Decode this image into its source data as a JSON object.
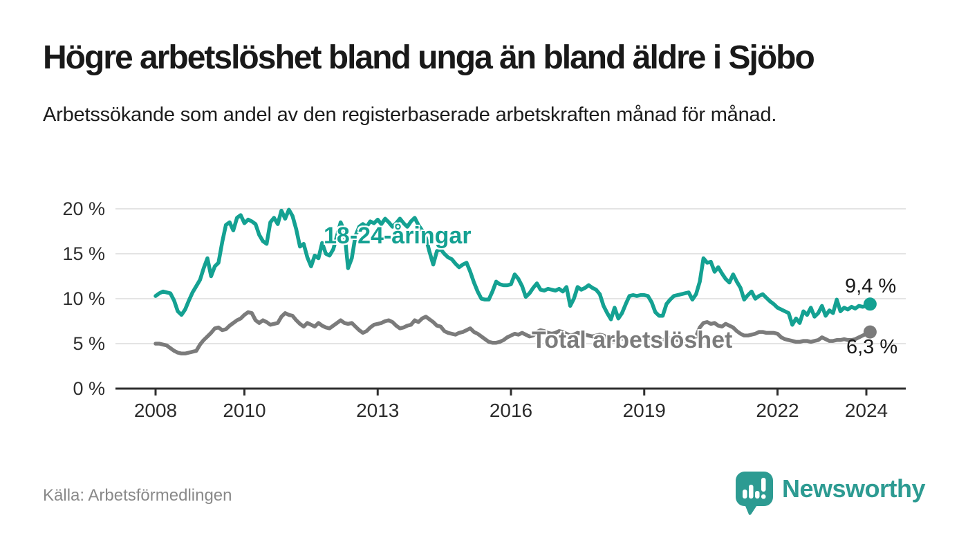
{
  "header": {
    "title": "Högre arbetslöshet bland unga än bland äldre i Sjöbo",
    "subtitle": "Arbetssökande som andel av den registerbaserade arbetskraften månad för månad."
  },
  "footer": {
    "source": "Källa: Arbetsförmedlingen",
    "brand": "Newsworthy"
  },
  "colors": {
    "youth_line": "#14a192",
    "total_line": "#7b7b7b",
    "grid": "#dcdcdc",
    "axis": "#2e2e2e",
    "logo_teal": "#2d9b92"
  },
  "chart_data": {
    "type": "line",
    "title": "Högre arbetslöshet bland unga än bland äldre i Sjöbo",
    "xlabel": "",
    "ylabel": "",
    "frequency": "monthly",
    "x_start": "2008-01",
    "x_end": "2024-02",
    "ylim": [
      0,
      21
    ],
    "grid": "horizontal",
    "y_ticks": [
      {
        "label": "20 %",
        "value": 20
      },
      {
        "label": "15 %",
        "value": 15
      },
      {
        "label": "10 %",
        "value": 10
      },
      {
        "label": "5 %",
        "value": 5
      },
      {
        "label": "0 %",
        "value": 0
      }
    ],
    "x_ticks": [
      {
        "label": "2008",
        "year": 2008
      },
      {
        "label": "2010",
        "year": 2010
      },
      {
        "label": "2013",
        "year": 2013
      },
      {
        "label": "2016",
        "year": 2016
      },
      {
        "label": "2019",
        "year": 2019
      },
      {
        "label": "2022",
        "year": 2022
      },
      {
        "label": "2024",
        "year": 2024
      }
    ],
    "series": [
      {
        "name": "18-24-åringar",
        "color": "#14a192",
        "end_label": "9,4 %",
        "end_value": 9.4,
        "values": [
          10.3,
          10.6,
          10.8,
          10.7,
          10.6,
          9.8,
          8.6,
          8.2,
          8.8,
          9.8,
          10.7,
          11.4,
          12.1,
          13.4,
          14.5,
          12.5,
          13.6,
          14.0,
          16.3,
          18.2,
          18.5,
          17.6,
          19.0,
          19.3,
          18.4,
          18.8,
          18.6,
          18.3,
          17.1,
          16.4,
          16.1,
          18.5,
          19.0,
          18.3,
          19.8,
          18.9,
          19.9,
          19.2,
          17.7,
          15.8,
          16.1,
          14.6,
          13.6,
          14.8,
          14.5,
          16.2,
          15.0,
          14.8,
          15.5,
          17.0,
          18.5,
          17.5,
          13.4,
          14.5,
          17.0,
          18.0,
          18.3,
          18.0,
          18.6,
          18.4,
          18.8,
          18.3,
          18.9,
          18.5,
          18.0,
          18.4,
          18.9,
          18.4,
          18.0,
          18.6,
          19.0,
          18.2,
          17.6,
          16.8,
          15.2,
          13.8,
          15.3,
          15.5,
          15.0,
          14.6,
          14.4,
          13.9,
          13.5,
          13.8,
          14.0,
          13.0,
          11.8,
          10.8,
          10.0,
          9.9,
          9.9,
          10.8,
          11.9,
          11.6,
          11.5,
          11.5,
          11.6,
          12.7,
          12.2,
          11.4,
          10.2,
          10.6,
          11.2,
          11.7,
          11.0,
          10.9,
          11.1,
          11.0,
          10.9,
          11.1,
          10.8,
          11.3,
          9.2,
          10.0,
          11.3,
          11.0,
          11.2,
          11.5,
          11.2,
          11.0,
          10.5,
          9.2,
          8.4,
          7.7,
          9.0,
          7.8,
          8.4,
          9.4,
          10.3,
          10.4,
          10.3,
          10.4,
          10.4,
          10.3,
          9.6,
          8.5,
          8.1,
          8.1,
          9.4,
          9.9,
          10.3,
          10.4,
          10.5,
          10.6,
          10.7,
          9.9,
          10.5,
          11.9,
          14.5,
          14.0,
          14.1,
          13.0,
          13.5,
          12.8,
          12.2,
          11.8,
          12.7,
          11.9,
          11.2,
          9.9,
          10.4,
          10.8,
          10.0,
          10.3,
          10.5,
          10.1,
          9.7,
          9.4,
          9.0,
          8.8,
          8.6,
          8.4,
          7.1,
          7.8,
          7.3,
          8.6,
          8.2,
          9.0,
          8.0,
          8.4,
          9.2,
          8.1,
          8.7,
          8.4,
          9.9,
          8.6,
          9.0,
          8.8,
          9.1,
          8.9,
          9.2,
          9.1,
          9.2,
          9.4
        ]
      },
      {
        "name": "Total arbetslöshet",
        "color": "#7b7b7b",
        "end_label": "6,3 %",
        "end_value": 6.3,
        "values": [
          5.0,
          5.0,
          4.9,
          4.8,
          4.5,
          4.2,
          4.0,
          3.9,
          3.9,
          4.0,
          4.1,
          4.2,
          4.9,
          5.4,
          5.8,
          6.2,
          6.7,
          6.8,
          6.5,
          6.6,
          7.0,
          7.3,
          7.6,
          7.8,
          8.2,
          8.5,
          8.4,
          7.6,
          7.3,
          7.6,
          7.4,
          7.1,
          7.2,
          7.3,
          8.0,
          8.4,
          8.2,
          8.1,
          7.6,
          7.2,
          6.9,
          7.3,
          7.1,
          6.9,
          7.3,
          7.0,
          6.8,
          6.7,
          7.0,
          7.3,
          7.6,
          7.3,
          7.2,
          7.3,
          6.9,
          6.5,
          6.2,
          6.4,
          6.8,
          7.1,
          7.2,
          7.3,
          7.5,
          7.6,
          7.4,
          7.0,
          6.7,
          6.8,
          7.0,
          7.1,
          7.6,
          7.4,
          7.8,
          8.0,
          7.7,
          7.4,
          7.0,
          6.9,
          6.4,
          6.2,
          6.1,
          6.0,
          6.2,
          6.3,
          6.5,
          6.7,
          6.3,
          6.1,
          5.8,
          5.5,
          5.2,
          5.1,
          5.1,
          5.2,
          5.4,
          5.7,
          5.9,
          6.1,
          6.0,
          6.2,
          6.0,
          5.8,
          5.9,
          6.3,
          6.5,
          6.4,
          6.2,
          6.1,
          6.2,
          6.4,
          6.3,
          6.1,
          5.9,
          6.0,
          6.2,
          6.1,
          6.0,
          5.9,
          5.8,
          5.9,
          6.0,
          5.9,
          5.7,
          5.5,
          5.4,
          5.5,
          5.6,
          5.5,
          5.4,
          5.5,
          5.6,
          5.7,
          5.8,
          5.7,
          5.6,
          5.4,
          5.3,
          5.4,
          5.5,
          5.6,
          5.5,
          5.4,
          5.3,
          5.3,
          5.4,
          5.2,
          5.8,
          6.8,
          7.3,
          7.4,
          7.2,
          7.3,
          7.0,
          6.9,
          7.2,
          7.0,
          6.8,
          6.4,
          6.1,
          5.9,
          5.9,
          6.0,
          6.1,
          6.3,
          6.3,
          6.2,
          6.2,
          6.2,
          6.1,
          5.7,
          5.5,
          5.4,
          5.3,
          5.2,
          5.2,
          5.3,
          5.3,
          5.2,
          5.3,
          5.4,
          5.7,
          5.5,
          5.3,
          5.3,
          5.4,
          5.4,
          5.5,
          5.4,
          5.4,
          5.5,
          5.7,
          5.9,
          6.1,
          6.3
        ]
      }
    ]
  }
}
